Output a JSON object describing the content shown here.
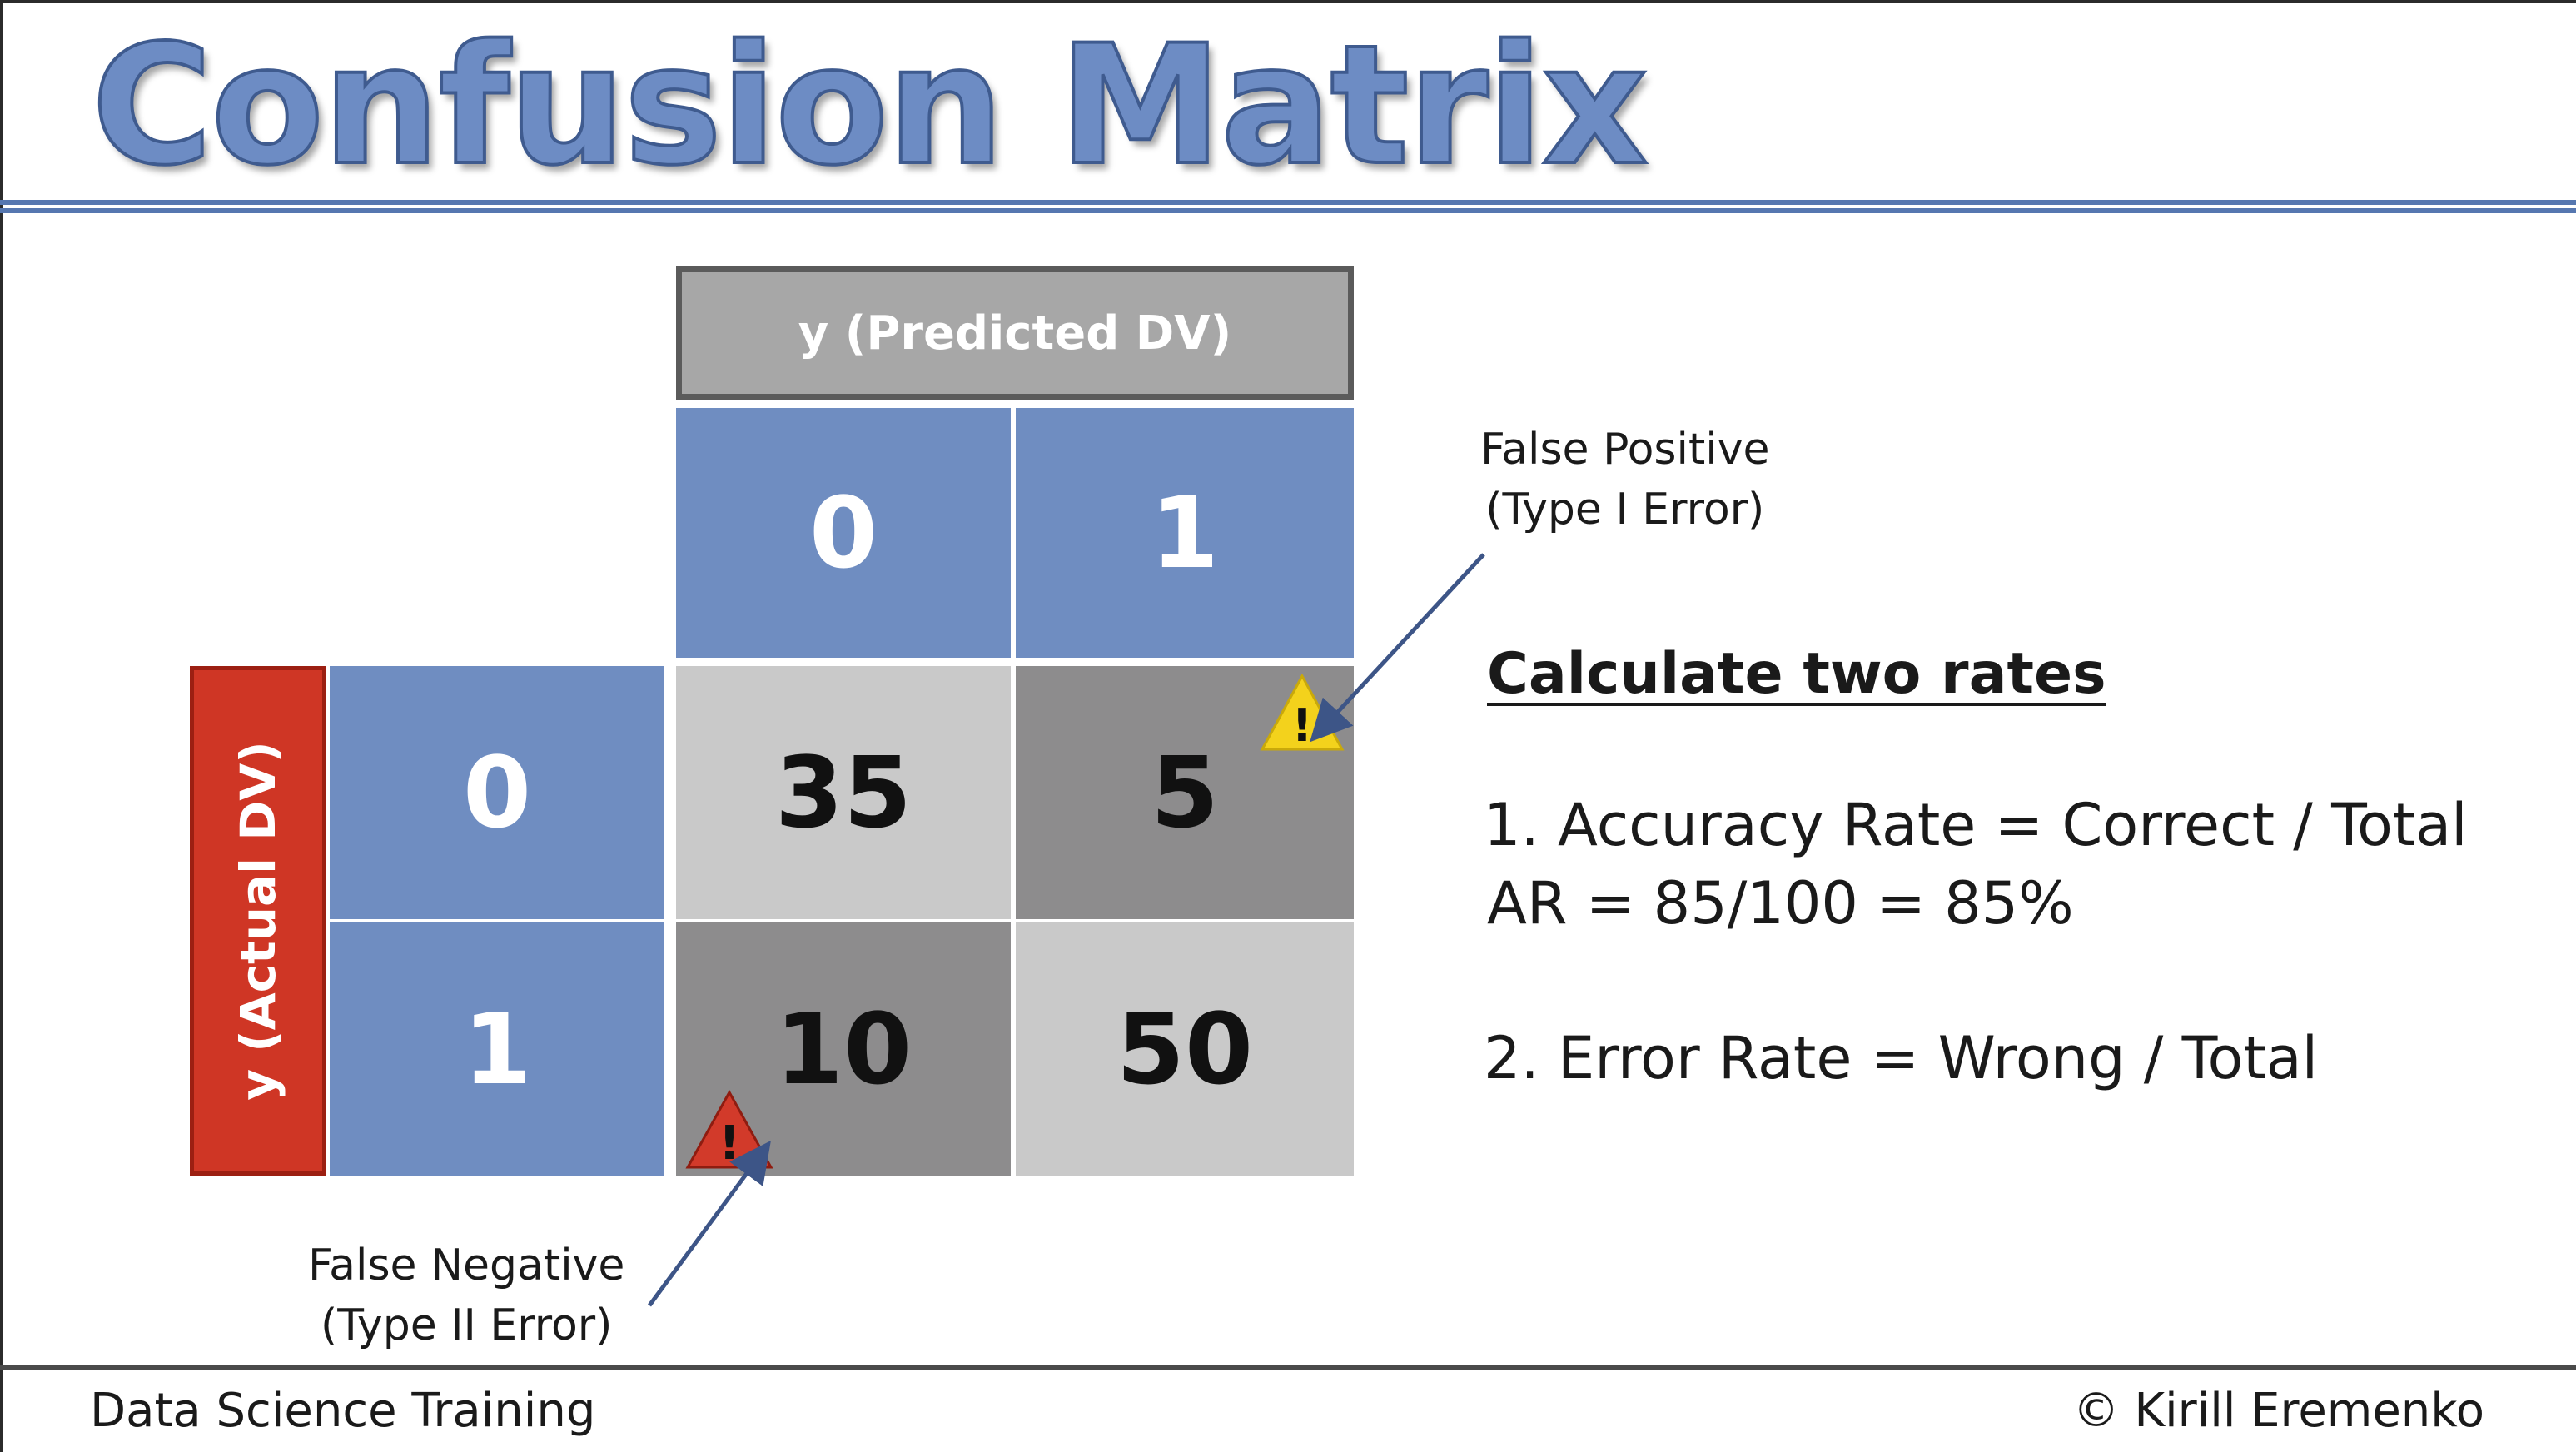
{
  "slide": {
    "title": "Confusion Matrix",
    "footer_left": "Data Science Training",
    "footer_right": "© Kirill Eremenko"
  },
  "matrix": {
    "predicted_header": "y (Predicted DV)",
    "actual_header": "y (Actual DV)",
    "predicted_labels": [
      "0",
      "1"
    ],
    "actual_labels": [
      "0",
      "1"
    ],
    "cells": {
      "r0c0": "35",
      "r0c1": "5",
      "r1c0": "10",
      "r1c1": "50"
    }
  },
  "annotations": {
    "false_positive_line1": "False Positive",
    "false_positive_line2": "(Type I Error)",
    "false_negative_line1": "False Negative",
    "false_negative_line2": "(Type II Error)"
  },
  "rates": {
    "heading": "Calculate two rates",
    "accuracy_line": "1. Accuracy Rate = Correct / Total",
    "accuracy_calc": "AR = 85/100 = 85%",
    "error_line": "2. Error Rate = Wrong / Total"
  },
  "colors": {
    "title_blue": "#6d8cc4",
    "cell_blue": "#6f8dc1",
    "actual_red": "#cf3625",
    "warning_yellow": "#f3d21c",
    "warning_red": "#d23a2a"
  },
  "icons": [
    "warning-triangle-yellow-icon",
    "warning-triangle-red-icon"
  ]
}
